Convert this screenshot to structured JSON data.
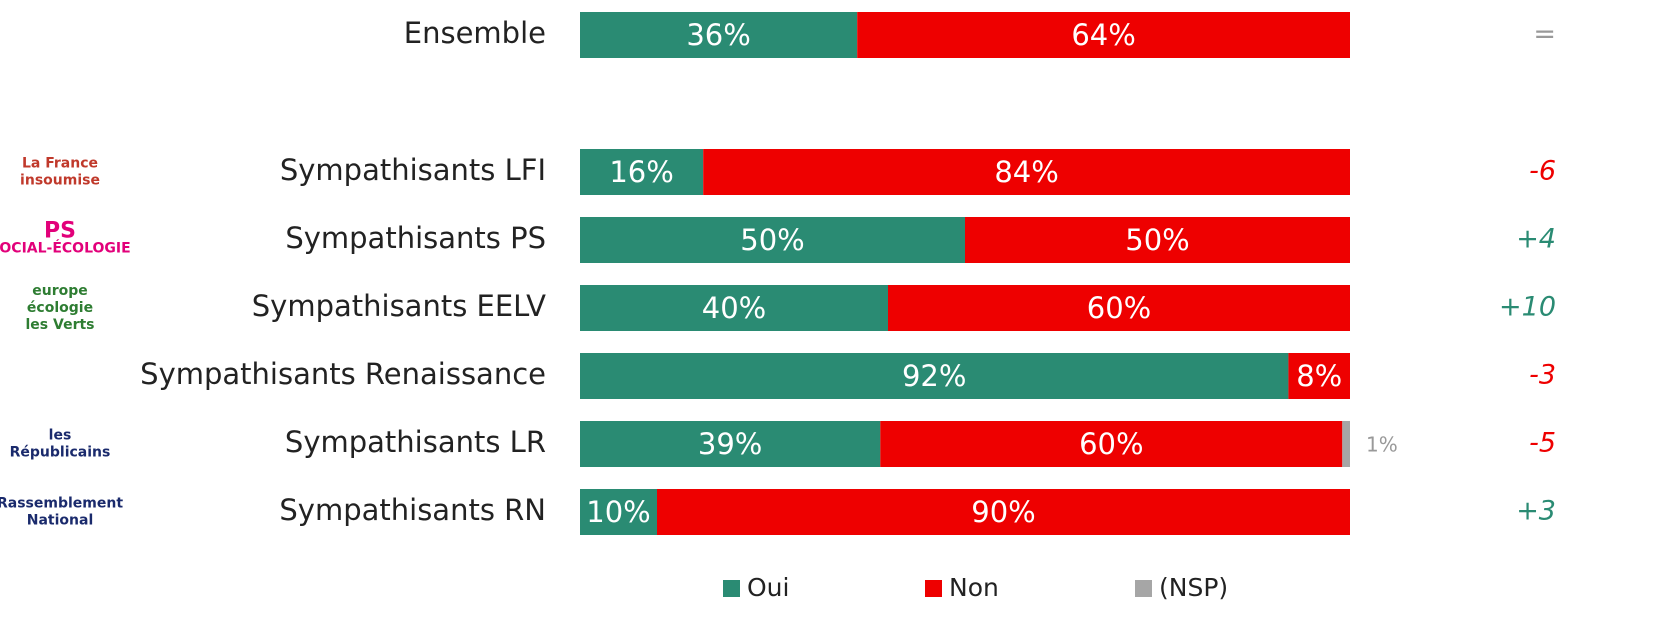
{
  "chart_data": {
    "type": "stacked-bar-horizontal",
    "categories": [
      "Ensemble",
      "Sympathisants LFI",
      "Sympathisants PS",
      "Sympathisants EELV",
      "Sympathisants Renaissance",
      "Sympathisants LR",
      "Sympathisants RN"
    ],
    "series": [
      {
        "name": "Oui",
        "color": "#2a8b73",
        "values": [
          36,
          16,
          50,
          40,
          92,
          39,
          10
        ],
        "value_labels": [
          "36%",
          "16%",
          "50%",
          "40%",
          "92%",
          "39%",
          "10%"
        ]
      },
      {
        "name": "Non",
        "color": "#ee0000",
        "values": [
          64,
          84,
          50,
          60,
          8,
          60,
          90
        ],
        "value_labels": [
          "64%",
          "84%",
          "50%",
          "60%",
          "8%",
          "60%",
          "90%"
        ]
      },
      {
        "name": "(NSP)",
        "color": "#a6a6a6",
        "values": [
          null,
          null,
          null,
          null,
          null,
          1,
          null
        ],
        "value_labels": [
          null,
          null,
          null,
          null,
          null,
          "1%",
          null
        ]
      }
    ],
    "xlim": [
      0,
      100
    ],
    "changes": {
      "values": [
        0,
        -6,
        4,
        10,
        -3,
        -5,
        3
      ],
      "value_labels": [
        "=",
        "-6",
        "+4",
        "+10",
        "-3",
        "-5",
        "+3"
      ],
      "colors": {
        "positive": "#2a8b73",
        "negative": "#ee0000",
        "zero": "#999999"
      }
    },
    "logos": [
      null,
      [
        "La France",
        "insoumise"
      ],
      [
        "PS",
        "SOCIAL-ÉCOLOGIE"
      ],
      [
        "europe",
        "écologie",
        "les Verts"
      ],
      null,
      [
        "les",
        "Républicains"
      ],
      [
        "Rassemblement",
        "National"
      ]
    ],
    "legend": "bottom"
  }
}
